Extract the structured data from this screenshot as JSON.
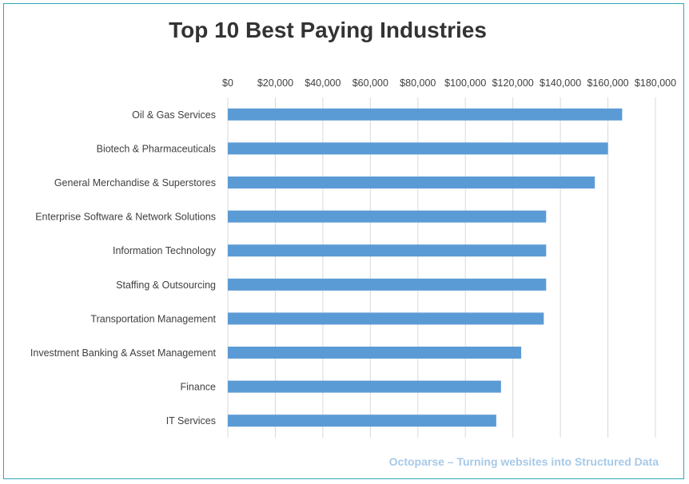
{
  "chart_data": {
    "type": "bar",
    "orientation": "horizontal",
    "title": "Top 10 Best Paying Industries",
    "categories": [
      "Oil & Gas Services",
      "Biotech & Pharmaceuticals",
      "General Merchandise & Superstores",
      "Enterprise Software & Network Solutions",
      "Information Technology",
      "Staffing & Outsourcing",
      "Transportation Management",
      "Investment Banking & Asset Management",
      "Finance",
      "IT Services"
    ],
    "values": [
      166000,
      160000,
      154500,
      134000,
      134000,
      134000,
      133000,
      123500,
      115000,
      113000
    ],
    "xlim": [
      0,
      180000
    ],
    "xticks": [
      "$0",
      "$20,000",
      "$40,000",
      "$60,000",
      "$80,000",
      "$100,000",
      "$120,000",
      "$140,000",
      "$160,000",
      "$180,000"
    ],
    "x_axis_position": "top",
    "grid": true,
    "bar_color": "#5b9bd5",
    "grid_color": "#d9d9d9"
  },
  "watermark": "Octoparse – Turning websites into Structured Data"
}
